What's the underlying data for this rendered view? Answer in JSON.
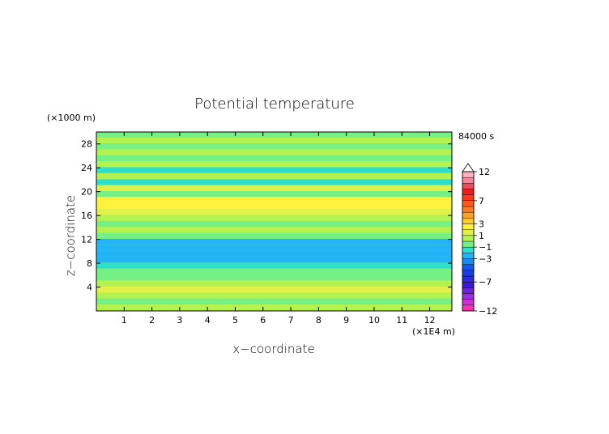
{
  "chart_data": {
    "type": "heatmap",
    "title": "Potential temperature",
    "xlabel": "x−coordinate",
    "ylabel": "z−coordinate",
    "x_unit": "(×1E4 m)",
    "y_unit": "(×1000 m)",
    "time_label": "84000 s",
    "xlim": [
      0,
      12.8
    ],
    "ylim": [
      0,
      30
    ],
    "x_ticks": [
      1,
      2,
      3,
      4,
      5,
      6,
      7,
      8,
      9,
      10,
      11,
      12
    ],
    "y_ticks": [
      4,
      8,
      12,
      16,
      20,
      24,
      28
    ],
    "colorbar": {
      "labels": [
        "12",
        "7",
        "3",
        "1",
        "−1",
        "−3",
        "−7",
        "−12"
      ],
      "label_levels": [
        12,
        7,
        3,
        1,
        -1,
        -3,
        -7,
        -12
      ],
      "levels": [
        -12,
        -11,
        -10,
        -9,
        -8,
        -7,
        -6,
        -5,
        -4,
        -3,
        -2,
        -1,
        0,
        1,
        2,
        3,
        4,
        5,
        6,
        7,
        8,
        9,
        10,
        11,
        12
      ],
      "colors": [
        "#ff2fb4",
        "#d12fd4",
        "#9a2fe0",
        "#6a24d8",
        "#3c1acc",
        "#2a2ad8",
        "#1a3ee0",
        "#1856f0",
        "#1c88f2",
        "#22b4f6",
        "#2ee0cc",
        "#74f084",
        "#b4f250",
        "#e0f24a",
        "#fff23c",
        "#ffc82c",
        "#ffa028",
        "#ff7a22",
        "#ff5a1e",
        "#ff3a1a",
        "#f01e1e",
        "#ee4a5e",
        "#f4849a",
        "#ffb0c0"
      ],
      "overflow_top_color": "#ffffff"
    },
    "bands": [
      {
        "z": 0.6,
        "value": 0.0
      },
      {
        "z": 1.6,
        "value": -0.4
      },
      {
        "z": 2.6,
        "value": 0.5
      },
      {
        "z": 3.6,
        "value": 1.6
      },
      {
        "z": 4.6,
        "value": 0.8
      },
      {
        "z": 5.6,
        "value": -0.3
      },
      {
        "z": 6.6,
        "value": -0.9
      },
      {
        "z": 7.6,
        "value": -1.6
      },
      {
        "z": 8.6,
        "value": -2.5
      },
      {
        "z": 9.6,
        "value": -2.9
      },
      {
        "z": 10.6,
        "value": -2.8
      },
      {
        "z": 11.6,
        "value": -2.4
      },
      {
        "z": 12.6,
        "value": -0.5
      },
      {
        "z": 13.6,
        "value": 0.4
      },
      {
        "z": 14.6,
        "value": -0.6
      },
      {
        "z": 15.6,
        "value": 0.8
      },
      {
        "z": 16.6,
        "value": 1.8
      },
      {
        "z": 17.6,
        "value": 2.6
      },
      {
        "z": 18.6,
        "value": 2.4
      },
      {
        "z": 19.6,
        "value": -0.8
      },
      {
        "z": 20.6,
        "value": 1.4
      },
      {
        "z": 21.6,
        "value": -1.6
      },
      {
        "z": 22.6,
        "value": 0.4
      },
      {
        "z": 23.6,
        "value": -1.2
      },
      {
        "z": 24.6,
        "value": 0.3
      },
      {
        "z": 25.6,
        "value": -0.6
      },
      {
        "z": 26.6,
        "value": 0.2
      },
      {
        "z": 27.6,
        "value": -0.3
      },
      {
        "z": 28.6,
        "value": 0.3
      },
      {
        "z": 29.6,
        "value": -0.2
      }
    ]
  }
}
